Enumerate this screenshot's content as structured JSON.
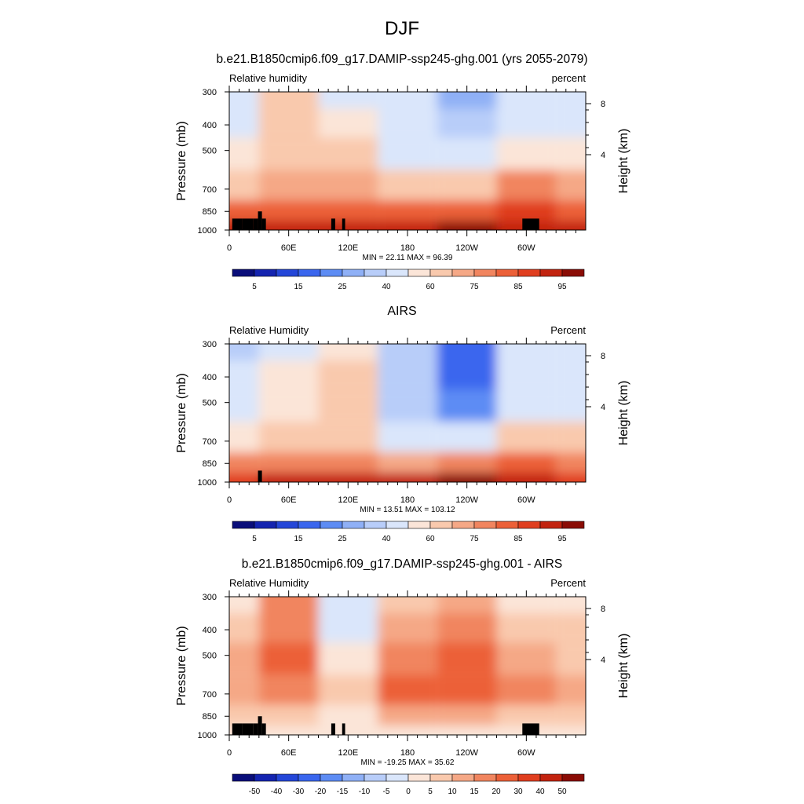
{
  "figure": {
    "title": "DJF"
  },
  "axes_common": {
    "ylabel": "Pressure (mb)",
    "ylabel_right": "Height (km)",
    "y_ticks": [
      300,
      400,
      500,
      700,
      850,
      1000
    ],
    "y_right_ticks": [
      8,
      4
    ],
    "x_ticks": [
      "0",
      "60E",
      "120E",
      "180",
      "120W",
      "60W"
    ]
  },
  "colorbar_rh": {
    "labels": [
      "5",
      "15",
      "25",
      "40",
      "60",
      "75",
      "85",
      "95"
    ],
    "levels": [
      0,
      5,
      10,
      15,
      20,
      25,
      30,
      40,
      50,
      60,
      70,
      75,
      80,
      85,
      90,
      95,
      100
    ]
  },
  "colorbar_diff": {
    "labels": [
      "-50",
      "-40",
      "-30",
      "-20",
      "-15",
      "-10",
      "-5",
      "0",
      "5",
      "10",
      "15",
      "20",
      "30",
      "40",
      "50"
    ],
    "levels": [
      -60,
      -50,
      -40,
      -30,
      -20,
      -15,
      -10,
      -5,
      0,
      5,
      10,
      15,
      20,
      30,
      40,
      50,
      60
    ]
  },
  "colors": {
    "rh": [
      "#0a0e7a",
      "#1424b0",
      "#2446d8",
      "#3a66ee",
      "#5d8cf4",
      "#8fb0f6",
      "#b8cdf9",
      "#dae6fb",
      "#fbe5d8",
      "#f9c9ad",
      "#f5a886",
      "#f1855f",
      "#ec6038",
      "#e03e1f",
      "#c2230f",
      "#8a0c05"
    ]
  },
  "panels": [
    {
      "title": "b.e21.B1850cmip6.f09_g17.DAMIP-ssp245-ghg.001 (yrs 2055-2079)",
      "left_label": "Relative humidity",
      "right_label": "percent",
      "minmax": "MIN =  22.11   MAX =  96.39"
    },
    {
      "title": "AIRS",
      "left_label": "Relative Humidity",
      "right_label": "Percent",
      "minmax": "MIN =  13.51   MAX = 103.12"
    },
    {
      "title": "b.e21.B1850cmip6.f09_g17.DAMIP-ssp245-ghg.001 - AIRS",
      "left_label": "Relative Humidity",
      "right_label": "Percent",
      "minmax": "MIN = -19.25   MAX =  35.62"
    }
  ],
  "chart_data": [
    {
      "type": "heatmap",
      "title": "b.e21.B1850cmip6.f09_g17.DAMIP-ssp245-ghg.001 (yrs 2055-2079)",
      "xlabel": "",
      "ylabel": "Pressure (mb)",
      "units": "percent",
      "x": [
        0,
        60,
        120,
        180,
        240,
        300,
        360
      ],
      "y_pressure_mb": [
        300,
        400,
        500,
        700,
        850,
        1000
      ],
      "z": [
        [
          42,
          62,
          40,
          40,
          28,
          42,
          40
        ],
        [
          48,
          65,
          55,
          42,
          32,
          48,
          45
        ],
        [
          55,
          68,
          65,
          48,
          44,
          55,
          55
        ],
        [
          68,
          72,
          70,
          62,
          65,
          78,
          70
        ],
        [
          82,
          80,
          80,
          80,
          82,
          85,
          82
        ],
        [
          90,
          92,
          92,
          94,
          96,
          92,
          90
        ]
      ]
    },
    {
      "type": "heatmap",
      "title": "AIRS",
      "xlabel": "",
      "ylabel": "Pressure (mb)",
      "units": "Percent",
      "x": [
        0,
        60,
        120,
        180,
        240,
        300,
        360
      ],
      "y_pressure_mb": [
        300,
        400,
        500,
        700,
        850,
        1000
      ],
      "z": [
        [
          38,
          45,
          55,
          38,
          18,
          40,
          40
        ],
        [
          40,
          50,
          60,
          35,
          15,
          40,
          42
        ],
        [
          45,
          55,
          62,
          35,
          22,
          45,
          48
        ],
        [
          58,
          62,
          65,
          45,
          40,
          60,
          60
        ],
        [
          75,
          78,
          78,
          72,
          75,
          80,
          75
        ],
        [
          88,
          92,
          92,
          90,
          96,
          90,
          88
        ]
      ]
    },
    {
      "type": "heatmap",
      "title": "b.e21.B1850cmip6.f09_g17.DAMIP-ssp245-ghg.001 - AIRS",
      "xlabel": "",
      "ylabel": "Pressure (mb)",
      "units": "Percent",
      "x": [
        0,
        60,
        120,
        180,
        240,
        300,
        360
      ],
      "y_pressure_mb": [
        300,
        400,
        500,
        700,
        850,
        1000
      ],
      "z": [
        [
          4,
          18,
          -3,
          5,
          10,
          0,
          2
        ],
        [
          8,
          18,
          -2,
          12,
          18,
          8,
          5
        ],
        [
          10,
          20,
          2,
          18,
          25,
          12,
          8
        ],
        [
          10,
          15,
          5,
          20,
          28,
          18,
          10
        ],
        [
          6,
          5,
          2,
          10,
          12,
          6,
          5
        ],
        [
          2,
          0,
          0,
          4,
          3,
          2,
          2
        ]
      ]
    }
  ]
}
